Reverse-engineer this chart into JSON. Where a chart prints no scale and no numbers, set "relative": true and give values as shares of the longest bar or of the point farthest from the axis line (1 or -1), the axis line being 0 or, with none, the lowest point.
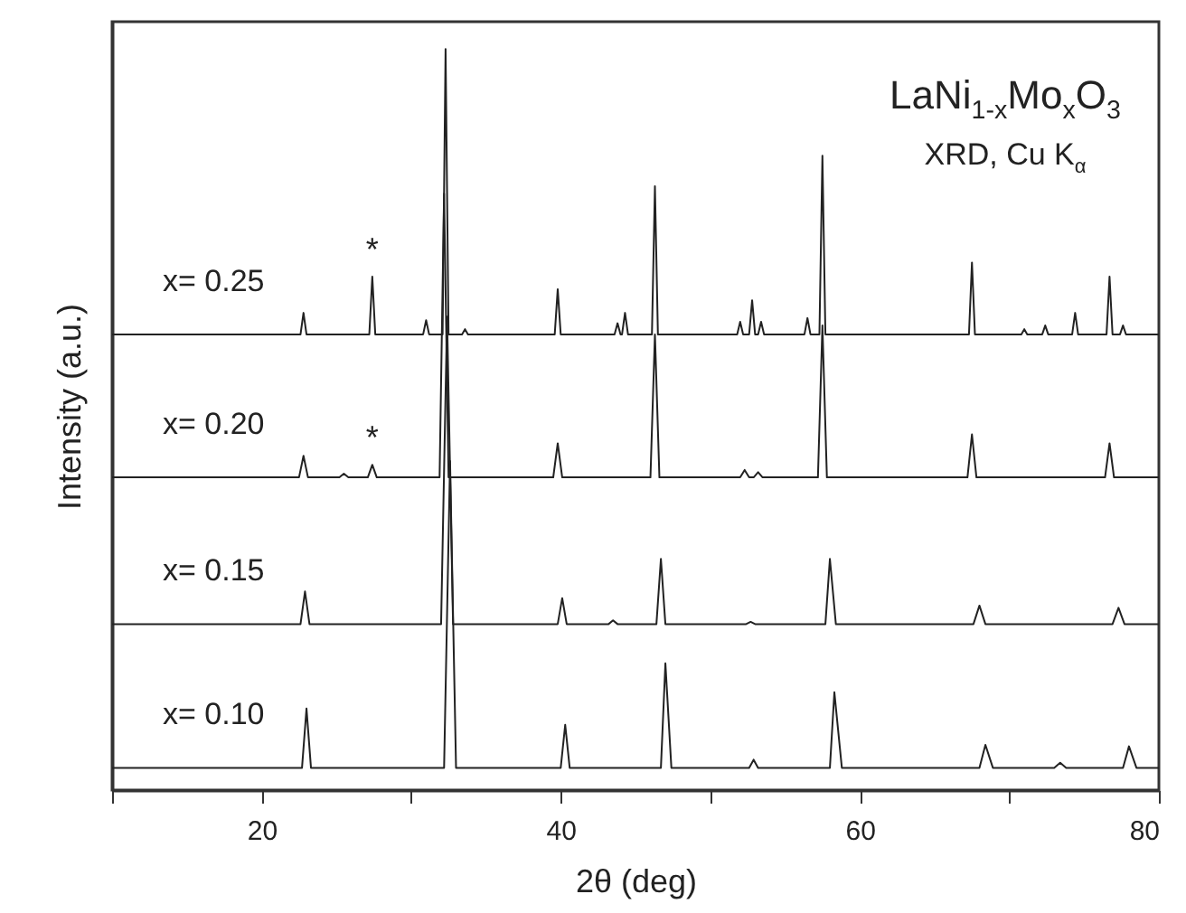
{
  "chart_data": {
    "type": "line",
    "relative": true,
    "xlabel": "2θ (deg)",
    "ylabel": "Intensity (a.u.)",
    "annotations": [
      "LaNi$_{1-x}$Mo$_{x}$O$_{3}$",
      "XRD, Cu K$_{α}$",
      {
        "text": "*",
        "x": 27.4,
        "y": 0.693
      },
      {
        "text": "*",
        "x": 27.4,
        "y": 0.439
      }
    ],
    "xlim": [
      10,
      80
    ],
    "xticks": [
      {
        "value": 10,
        "label": null
      },
      20,
      {
        "value": 30,
        "label": null
      },
      40,
      {
        "value": 50,
        "label": null
      },
      60,
      {
        "value": 70,
        "label": null
      },
      80
    ],
    "grid": false,
    "marker": "none",
    "line_style": "solid",
    "series": [
      {
        "name": "x= 0.25",
        "color": "#222222",
        "x": [
          10,
          22.6,
          22.8,
          23.0,
          27.2,
          27.4,
          27.6,
          30.8,
          31.0,
          31.2,
          32.1,
          32.3,
          32.5,
          33.4,
          33.6,
          33.8,
          39.6,
          39.8,
          40.0,
          43.6,
          43.8,
          44.0,
          44.1,
          44.3,
          44.5,
          46.1,
          46.3,
          46.5,
          51.8,
          52.0,
          52.2,
          52.6,
          52.8,
          53.0,
          53.2,
          53.4,
          53.6,
          56.3,
          56.5,
          56.7,
          57.3,
          57.5,
          57.7,
          67.3,
          67.5,
          67.7,
          70.8,
          71.0,
          71.2,
          72.2,
          72.4,
          72.6,
          74.2,
          74.4,
          74.6,
          76.5,
          76.7,
          76.9,
          77.4,
          77.6,
          77.8,
          80
        ],
        "values": [
          0.615,
          0.615,
          0.644,
          0.615,
          0.615,
          0.693,
          0.615,
          0.615,
          0.634,
          0.615,
          0.615,
          1.0,
          0.615,
          0.615,
          0.622,
          0.615,
          0.615,
          0.676,
          0.615,
          0.615,
          0.63,
          0.615,
          0.615,
          0.644,
          0.615,
          0.615,
          0.815,
          0.615,
          0.615,
          0.632,
          0.615,
          0.615,
          0.661,
          0.615,
          0.615,
          0.632,
          0.615,
          0.615,
          0.637,
          0.615,
          0.615,
          0.856,
          0.615,
          0.615,
          0.712,
          0.615,
          0.615,
          0.622,
          0.615,
          0.615,
          0.627,
          0.615,
          0.615,
          0.644,
          0.615,
          0.615,
          0.693,
          0.615,
          0.615,
          0.627,
          0.615,
          0.615
        ]
      },
      {
        "name": "x= 0.20",
        "color": "#222222",
        "x": [
          10,
          22.5,
          22.8,
          23.1,
          25.2,
          25.5,
          25.8,
          27.1,
          27.4,
          27.7,
          31.9,
          32.2,
          32.5,
          39.5,
          39.8,
          40.1,
          46.0,
          46.3,
          46.6,
          52.0,
          52.3,
          52.6,
          52.9,
          53.2,
          53.5,
          57.2,
          57.5,
          57.8,
          67.2,
          67.5,
          67.8,
          76.4,
          76.7,
          77.0,
          80
        ],
        "values": [
          0.422,
          0.422,
          0.451,
          0.422,
          0.422,
          0.427,
          0.422,
          0.422,
          0.439,
          0.422,
          0.422,
          0.805,
          0.422,
          0.422,
          0.468,
          0.422,
          0.422,
          0.615,
          0.422,
          0.422,
          0.432,
          0.422,
          0.422,
          0.429,
          0.422,
          0.422,
          0.627,
          0.422,
          0.422,
          0.48,
          0.422,
          0.422,
          0.468,
          0.422,
          0.422
        ]
      },
      {
        "name": "x= 0.15",
        "color": "#222222",
        "x": [
          10,
          22.6,
          22.9,
          23.2,
          32.0,
          32.4,
          32.8,
          39.8,
          40.1,
          40.4,
          43.2,
          43.5,
          43.8,
          46.4,
          46.7,
          47.0,
          52.4,
          52.7,
          53.0,
          57.7,
          58.0,
          58.4,
          67.6,
          68.0,
          68.4,
          76.9,
          77.3,
          77.7,
          80
        ],
        "values": [
          0.224,
          0.224,
          0.268,
          0.224,
          0.224,
          0.639,
          0.224,
          0.224,
          0.259,
          0.224,
          0.224,
          0.229,
          0.224,
          0.224,
          0.312,
          0.224,
          0.224,
          0.227,
          0.224,
          0.224,
          0.312,
          0.224,
          0.224,
          0.249,
          0.224,
          0.224,
          0.246,
          0.224,
          0.224
        ]
      },
      {
        "name": "x= 0.10",
        "color": "#222222",
        "x": [
          10,
          22.7,
          23.0,
          23.3,
          32.2,
          32.6,
          33.0,
          40.0,
          40.3,
          40.6,
          46.7,
          47.0,
          47.4,
          52.6,
          52.9,
          53.2,
          58.0,
          58.3,
          58.8,
          68.0,
          68.4,
          68.9,
          73.0,
          73.4,
          73.8,
          77.6,
          78.0,
          78.5,
          80
        ],
        "values": [
          0.03,
          0.03,
          0.11,
          0.03,
          0.03,
          0.444,
          0.03,
          0.03,
          0.088,
          0.03,
          0.03,
          0.171,
          0.03,
          0.03,
          0.041,
          0.03,
          0.03,
          0.132,
          0.03,
          0.03,
          0.061,
          0.03,
          0.03,
          0.037,
          0.03,
          0.03,
          0.059,
          0.03,
          0.03
        ]
      }
    ]
  }
}
